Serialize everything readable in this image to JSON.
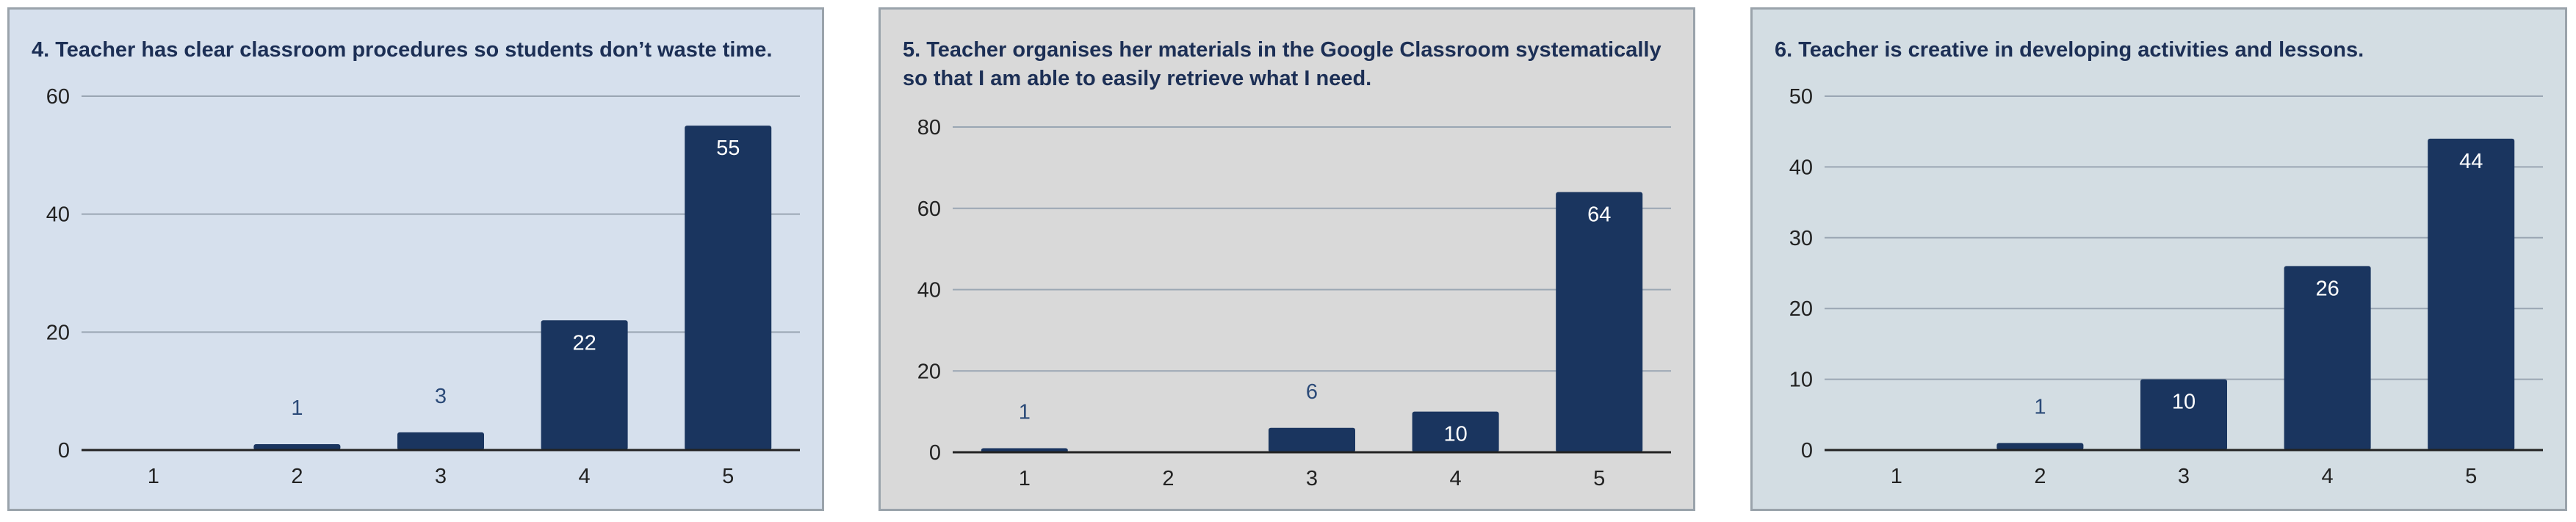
{
  "colors": {
    "bar": "#1a355f",
    "label_outside": "#2b4a78",
    "label_inside": "#ffffff",
    "grid": "#9aa6b3",
    "axis": "#222222"
  },
  "chart_data": [
    {
      "type": "bar",
      "title": "4. Teacher has clear classroom procedures so students don’t waste time.",
      "categories": [
        "1",
        "2",
        "3",
        "4",
        "5"
      ],
      "values": [
        0,
        1,
        3,
        22,
        55
      ],
      "data_labels": [
        "",
        "1",
        "3",
        "22",
        "55"
      ],
      "yticks": [
        "0",
        "20",
        "40",
        "60"
      ],
      "ylim": [
        0,
        60
      ],
      "grid": true,
      "xlabel": "",
      "ylabel": ""
    },
    {
      "type": "bar",
      "title": "5. Teacher organises her materials in the Google Classroom systematically so that I am able to easily retrieve what I need.",
      "categories": [
        "1",
        "2",
        "3",
        "4",
        "5"
      ],
      "values": [
        1,
        0,
        6,
        10,
        64
      ],
      "data_labels": [
        "1",
        "",
        "6",
        "10",
        "64"
      ],
      "yticks": [
        "0",
        "20",
        "40",
        "60",
        "80"
      ],
      "ylim": [
        0,
        80
      ],
      "grid": true,
      "xlabel": "",
      "ylabel": ""
    },
    {
      "type": "bar",
      "title": "6. Teacher is creative in developing activities and lessons.",
      "categories": [
        "1",
        "2",
        "3",
        "4",
        "5"
      ],
      "values": [
        0,
        1,
        10,
        26,
        44
      ],
      "data_labels": [
        "",
        "1",
        "10",
        "26",
        "44"
      ],
      "yticks": [
        "0",
        "10",
        "20",
        "30",
        "40",
        "50"
      ],
      "ylim": [
        0,
        50
      ],
      "grid": true,
      "xlabel": "",
      "ylabel": ""
    }
  ]
}
